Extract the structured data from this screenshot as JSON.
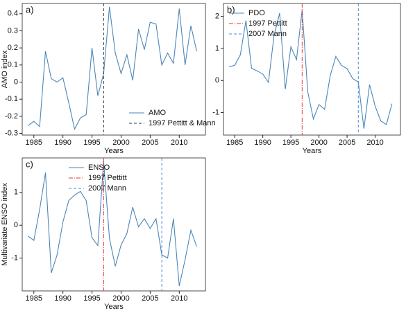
{
  "chart_data": [
    {
      "type": "line",
      "label": "a)",
      "xlabel": "Years",
      "ylabel": "AMO index",
      "x": [
        1984,
        1985,
        1986,
        1987,
        1988,
        1989,
        1990,
        1991,
        1992,
        1993,
        1994,
        1995,
        1996,
        1997,
        1998,
        1999,
        2000,
        2001,
        2002,
        2003,
        2004,
        2005,
        2006,
        2007,
        2008,
        2009,
        2010,
        2011,
        2012,
        2013
      ],
      "series": [
        {
          "name": "AMO",
          "color": "#4a86b8",
          "values": [
            -0.255,
            -0.23,
            -0.26,
            0.18,
            0.02,
            0.0,
            0.025,
            -0.12,
            -0.275,
            -0.21,
            -0.19,
            0.2,
            -0.08,
            0.05,
            0.44,
            0.17,
            0.05,
            0.16,
            0.01,
            0.31,
            0.19,
            0.35,
            0.34,
            0.1,
            0.17,
            0.11,
            0.43,
            0.1,
            0.33,
            0.18
          ]
        }
      ],
      "vlines": [
        {
          "x": 1997,
          "name": "1997 Pettitt & Mann",
          "color": "#333333",
          "style": "dashed"
        }
      ],
      "xlim": [
        1983,
        2014.5
      ],
      "xticks": [
        1985,
        1990,
        1995,
        2000,
        2005,
        2010
      ],
      "ylim": [
        -0.31,
        0.46
      ],
      "yticks": [
        -0.3,
        -0.2,
        -0.1,
        0,
        0.1,
        0.2,
        0.3,
        0.4
      ],
      "legend": "lower right"
    },
    {
      "type": "line",
      "label": "b)",
      "xlabel": "Years",
      "x": [
        1984,
        1985,
        1986,
        1987,
        1988,
        1989,
        1990,
        1991,
        1992,
        1993,
        1994,
        1995,
        1996,
        1997,
        1998,
        1999,
        2000,
        2001,
        2002,
        2003,
        2004,
        2005,
        2006,
        2007,
        2008,
        2009,
        2010,
        2011,
        2012,
        2013
      ],
      "series": [
        {
          "name": "PDO",
          "color": "#4a86b8",
          "values": [
            0.43,
            0.47,
            0.8,
            1.87,
            0.38,
            0.3,
            0.2,
            -0.06,
            1.4,
            2.1,
            -0.27,
            1.05,
            0.65,
            2.2,
            -0.35,
            -1.2,
            -0.75,
            -0.9,
            0.15,
            0.75,
            0.47,
            0.37,
            0.06,
            -0.05,
            -1.5,
            -0.13,
            -0.8,
            -1.26,
            -1.37,
            -0.72
          ]
        }
      ],
      "vlines": [
        {
          "x": 1997,
          "name": "1997 Pettitt",
          "color": "#e8322c",
          "style": "dashdot"
        },
        {
          "x": 2007,
          "name": "2007 Mann",
          "color": "#4a86d8",
          "style": "dashed"
        }
      ],
      "xlim": [
        1983,
        2014.5
      ],
      "xticks": [
        1985,
        1990,
        1995,
        2000,
        2005,
        2010
      ],
      "ylim": [
        -1.7,
        2.4
      ],
      "yticks": [
        -1,
        0,
        1,
        2
      ],
      "legend": "upper left"
    },
    {
      "type": "line",
      "label": "c)",
      "xlabel": "Years",
      "ylabel": "Multivariate ENSO index",
      "x": [
        1984,
        1985,
        1986,
        1987,
        1988,
        1989,
        1990,
        1991,
        1992,
        1993,
        1994,
        1995,
        1996,
        1997,
        1998,
        1999,
        2000,
        2001,
        2002,
        2003,
        2004,
        2005,
        2006,
        2007,
        2008,
        2009,
        2010,
        2011,
        2012,
        2013
      ],
      "series": [
        {
          "name": "ENSO",
          "color": "#4a86b8",
          "values": [
            -0.33,
            -0.46,
            0.48,
            1.6,
            -1.45,
            -0.9,
            0.1,
            0.75,
            0.92,
            1.03,
            0.75,
            -0.38,
            -0.62,
            1.95,
            -0.4,
            -1.25,
            -0.6,
            -0.25,
            0.55,
            -0.05,
            0.2,
            -0.1,
            0.2,
            -0.9,
            -1.0,
            0.2,
            -1.85,
            -1.05,
            -0.15,
            -0.65
          ]
        }
      ],
      "vlines": [
        {
          "x": 1997,
          "name": "1997 Pettitt",
          "color": "#e8322c",
          "style": "dashdot"
        },
        {
          "x": 2007,
          "name": "2007 Mann",
          "color": "#4a86d8",
          "style": "dashed"
        }
      ],
      "xlim": [
        1983,
        2014.5
      ],
      "xticks": [
        1985,
        1990,
        1995,
        2000,
        2005,
        2010
      ],
      "ylim": [
        -2.0,
        2.05
      ],
      "yticks": [
        -1,
        0,
        1
      ],
      "legend": "upper center"
    }
  ]
}
